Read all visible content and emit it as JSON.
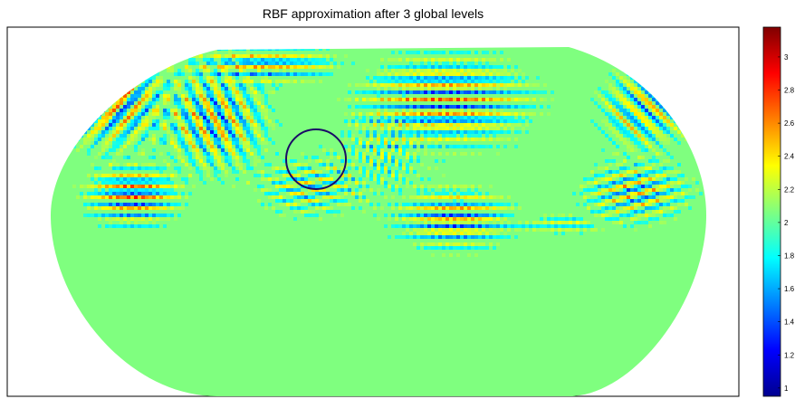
{
  "chart_data": {
    "type": "heatmap",
    "title": "RBF approximation after 3 global levels",
    "xlabel": "",
    "ylabel": "",
    "projection": "elliptical world map",
    "colormap": "jet",
    "colorbar": {
      "range": [
        0.95,
        3.18
      ],
      "ticks": [
        "1",
        "1.2",
        "1.4",
        "1.6",
        "1.8",
        "2",
        "2.2",
        "2.4",
        "2.6",
        "2.8",
        "3"
      ]
    },
    "background_value": 2.0,
    "annotation": "circle",
    "grid": false
  },
  "colors": {
    "circle": "#1a0a66",
    "frame": "#000000"
  }
}
